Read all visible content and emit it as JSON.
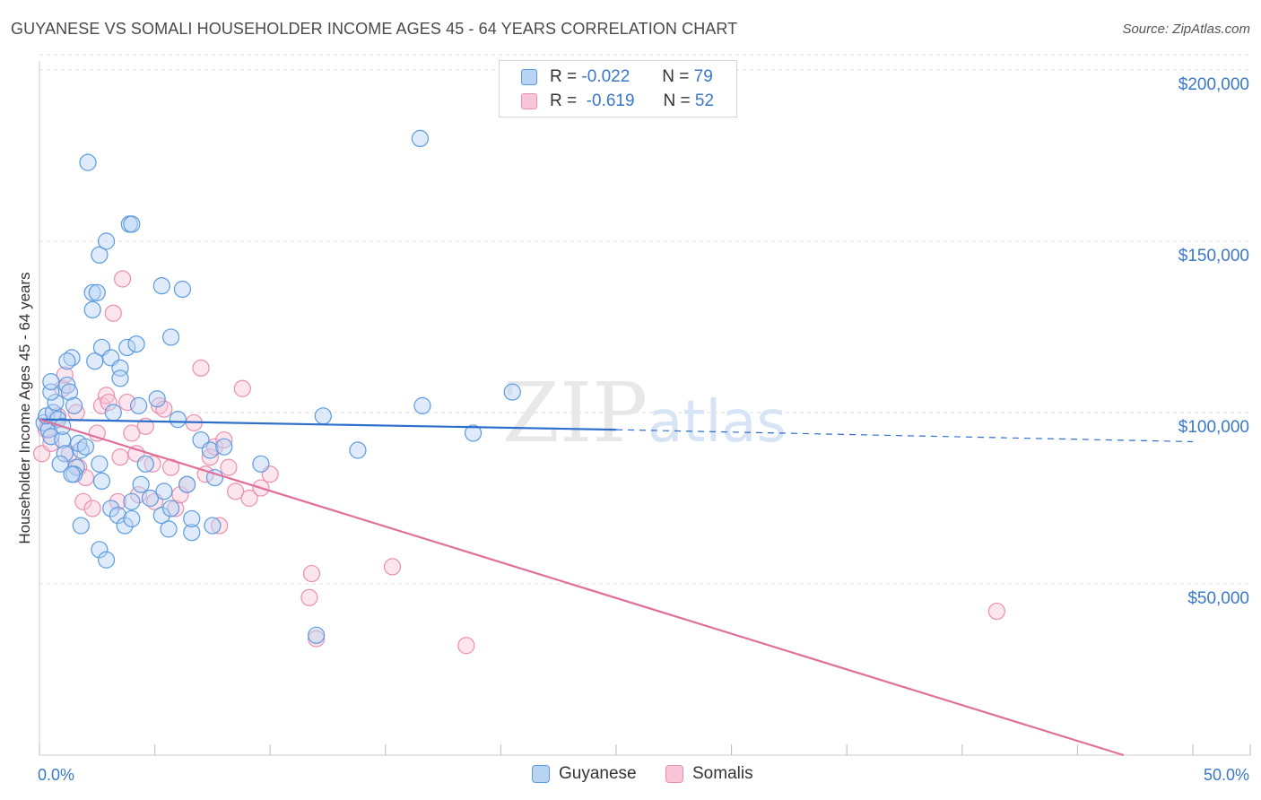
{
  "title": "GUYANESE VS SOMALI HOUSEHOLDER INCOME AGES 45 - 64 YEARS CORRELATION CHART",
  "source": "Source: ZipAtlas.com",
  "legend": {
    "rows": [
      {
        "r_label": "R =",
        "r_value": "-0.022",
        "n_label": "N =",
        "n_value": "79"
      },
      {
        "r_label": "R =",
        "r_value": "-0.619",
        "n_label": "N =",
        "n_value": "52"
      }
    ]
  },
  "colors": {
    "guyanese": "#5b9be0",
    "guyanese_fill": "#b8d3f3",
    "guyanese_line": "#2e6fcc",
    "somalis": "#ea8fb0",
    "somalis_fill": "#f8c6d8",
    "somalis_line": "#e0709a",
    "tick_text": "#3a78c9",
    "grid": "#dddddd"
  },
  "chart_data": {
    "type": "scatter",
    "title": "GUYANESE VS SOMALI HOUSEHOLDER INCOME AGES 45 - 64 YEARS CORRELATION CHART",
    "xlabel": "",
    "ylabel": "Householder Income Ages 45 - 64 years",
    "xlim": [
      0,
      50
    ],
    "ylim": [
      0,
      205000
    ],
    "x_tick_labels": [
      "0.0%",
      "50.0%"
    ],
    "y_ticks": [
      50000,
      100000,
      150000,
      200000
    ],
    "y_tick_labels": [
      "$50,000",
      "$100,000",
      "$150,000",
      "$200,000"
    ],
    "grid": "horizontal dashed",
    "legend_position": "top-center and bottom",
    "watermark": "ZIPatlas",
    "series": [
      {
        "name": "Guyanese",
        "r": -0.022,
        "n": 79,
        "trend": {
          "x": [
            0,
            25
          ],
          "y": [
            98000,
            95000
          ],
          "dashed_extension_to": [
            50,
            91500
          ]
        },
        "points": [
          [
            0.2,
            97000
          ],
          [
            0.4,
            95000
          ],
          [
            0.5,
            93000
          ],
          [
            0.3,
            99000
          ],
          [
            0.6,
            100000
          ],
          [
            0.8,
            98000
          ],
          [
            1.0,
            92000
          ],
          [
            1.1,
            88000
          ],
          [
            0.7,
            103000
          ],
          [
            0.5,
            106000
          ],
          [
            0.5,
            109000
          ],
          [
            1.2,
            108000
          ],
          [
            1.3,
            106000
          ],
          [
            1.4,
            116000
          ],
          [
            1.2,
            115000
          ],
          [
            1.5,
            102000
          ],
          [
            1.6,
            84000
          ],
          [
            1.5,
            82000
          ],
          [
            1.0,
            96000
          ],
          [
            0.9,
            85000
          ],
          [
            1.8,
            89000
          ],
          [
            1.7,
            91000
          ],
          [
            2.0,
            90000
          ],
          [
            2.1,
            173000
          ],
          [
            2.3,
            130000
          ],
          [
            2.3,
            135000
          ],
          [
            2.4,
            115000
          ],
          [
            2.6,
            146000
          ],
          [
            2.7,
            119000
          ],
          [
            2.9,
            150000
          ],
          [
            2.5,
            135000
          ],
          [
            3.1,
            116000
          ],
          [
            3.2,
            100000
          ],
          [
            3.5,
            113000
          ],
          [
            3.5,
            110000
          ],
          [
            3.8,
            119000
          ],
          [
            3.9,
            155000
          ],
          [
            4.0,
            155000
          ],
          [
            4.2,
            120000
          ],
          [
            4.3,
            102000
          ],
          [
            2.7,
            80000
          ],
          [
            2.6,
            85000
          ],
          [
            3.1,
            72000
          ],
          [
            3.4,
            70000
          ],
          [
            3.7,
            67000
          ],
          [
            4.0,
            69000
          ],
          [
            4.4,
            79000
          ],
          [
            4.6,
            85000
          ],
          [
            4.8,
            75000
          ],
          [
            5.1,
            104000
          ],
          [
            5.3,
            137000
          ],
          [
            5.4,
            77000
          ],
          [
            5.3,
            70000
          ],
          [
            5.7,
            72000
          ],
          [
            5.6,
            66000
          ],
          [
            6.0,
            98000
          ],
          [
            6.2,
            136000
          ],
          [
            6.4,
            79000
          ],
          [
            6.6,
            65000
          ],
          [
            6.6,
            69000
          ],
          [
            7.0,
            92000
          ],
          [
            7.4,
            89000
          ],
          [
            7.6,
            81000
          ],
          [
            7.5,
            67000
          ],
          [
            8.0,
            90000
          ],
          [
            2.6,
            60000
          ],
          [
            2.9,
            57000
          ],
          [
            1.8,
            67000
          ],
          [
            4.0,
            74000
          ],
          [
            5.7,
            122000
          ],
          [
            9.6,
            85000
          ],
          [
            12.0,
            35000
          ],
          [
            12.3,
            99000
          ],
          [
            13.8,
            89000
          ],
          [
            16.5,
            180000
          ],
          [
            16.6,
            102000
          ],
          [
            18.8,
            94000
          ],
          [
            20.5,
            106000
          ],
          [
            1.4,
            82000
          ]
        ]
      },
      {
        "name": "Somalis",
        "r": -0.619,
        "n": 52,
        "trend": {
          "x": [
            0,
            47
          ],
          "y": [
            98000,
            0
          ]
        },
        "points": [
          [
            0.1,
            88000
          ],
          [
            0.3,
            95000
          ],
          [
            0.5,
            91000
          ],
          [
            0.8,
            99000
          ],
          [
            1.0,
            107000
          ],
          [
            1.1,
            111000
          ],
          [
            1.3,
            88000
          ],
          [
            1.6,
            100000
          ],
          [
            1.7,
            84000
          ],
          [
            2.0,
            81000
          ],
          [
            1.9,
            74000
          ],
          [
            2.3,
            72000
          ],
          [
            2.5,
            94000
          ],
          [
            2.7,
            102000
          ],
          [
            2.9,
            105000
          ],
          [
            3.0,
            103000
          ],
          [
            3.2,
            129000
          ],
          [
            3.6,
            139000
          ],
          [
            3.8,
            103000
          ],
          [
            3.5,
            87000
          ],
          [
            4.0,
            94000
          ],
          [
            4.2,
            88000
          ],
          [
            4.3,
            76000
          ],
          [
            4.6,
            96000
          ],
          [
            4.9,
            85000
          ],
          [
            5.0,
            74000
          ],
          [
            5.2,
            102000
          ],
          [
            5.4,
            101000
          ],
          [
            5.7,
            84000
          ],
          [
            5.9,
            72000
          ],
          [
            6.1,
            76000
          ],
          [
            6.4,
            79000
          ],
          [
            6.7,
            97000
          ],
          [
            7.0,
            113000
          ],
          [
            7.2,
            82000
          ],
          [
            7.4,
            87000
          ],
          [
            7.6,
            90000
          ],
          [
            7.8,
            67000
          ],
          [
            8.0,
            92000
          ],
          [
            8.2,
            84000
          ],
          [
            8.5,
            77000
          ],
          [
            8.8,
            107000
          ],
          [
            9.1,
            75000
          ],
          [
            9.6,
            78000
          ],
          [
            10.0,
            82000
          ],
          [
            11.7,
            46000
          ],
          [
            11.8,
            53000
          ],
          [
            12.0,
            34000
          ],
          [
            15.3,
            55000
          ],
          [
            18.5,
            32000
          ],
          [
            41.5,
            42000
          ],
          [
            3.4,
            74000
          ]
        ]
      }
    ]
  },
  "bottom_legend": [
    "Guyanese",
    "Somalis"
  ]
}
